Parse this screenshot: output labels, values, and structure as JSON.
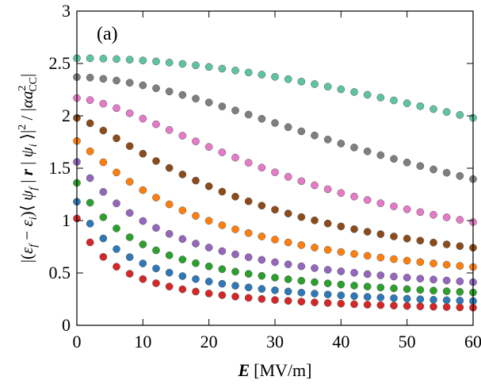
{
  "chart_data": {
    "type": "scatter",
    "panel_label": "(a)",
    "xlabel": "E [MV/m]",
    "xlabel_parts": {
      "symbol": "E",
      "unit": "[MV/m]"
    },
    "ylabel": "|(εf − εi)⟨ψf | r | ψi⟩|² / |αa²CC|",
    "ylabel_parts": {
      "lhs": "|(",
      "eps_f": "ε",
      "f": "f",
      "minus": " − ",
      "eps_i": "ε",
      "i": "i",
      "close": ")⟨ ",
      "psi1": "ψ",
      "bar1": " | ",
      "r": "r",
      "bar2": " | ",
      "psi2": "ψ",
      "close2": " ⟩|",
      "sq": "2",
      "slash": " / |",
      "alpha": "αa",
      "sq2": "2",
      "cc": "CC",
      "end": "|"
    },
    "xlim": [
      0,
      60
    ],
    "ylim": [
      0,
      3
    ],
    "xticks": [
      0,
      10,
      20,
      30,
      40,
      50,
      60
    ],
    "yticks": [
      0,
      0.5,
      1,
      1.5,
      2,
      2.5,
      3
    ],
    "ytick_labels": [
      "0",
      "0.5",
      "1",
      "1.5",
      "2",
      "2.5",
      "3"
    ],
    "series": [
      {
        "name": "s1",
        "color": "#d62728",
        "y0": 1.02,
        "yinf": 0.08,
        "k": 0.16,
        "p": 1.0
      },
      {
        "name": "s2",
        "color": "#2f78b8",
        "y0": 1.18,
        "yinf": 0.1,
        "k": 0.12,
        "p": 1.0
      },
      {
        "name": "s3",
        "color": "#2ca02c",
        "y0": 1.36,
        "yinf": 0.12,
        "k": 0.09,
        "p": 1.0
      },
      {
        "name": "s4",
        "color": "#9467bd",
        "y0": 1.56,
        "yinf": 0.15,
        "k": 0.068,
        "p": 1.05
      },
      {
        "name": "s5",
        "color": "#ff7f0e",
        "y0": 1.76,
        "yinf": 0.2,
        "k": 0.048,
        "p": 1.15
      },
      {
        "name": "s6",
        "color": "#8c4b1a",
        "y0": 1.98,
        "yinf": 0.25,
        "k": 0.034,
        "p": 1.3
      },
      {
        "name": "s7",
        "color": "#e57ac6",
        "y0": 2.17,
        "yinf": 0.3,
        "k": 0.024,
        "p": 1.5
      },
      {
        "name": "s8",
        "color": "#7f7f7f",
        "y0": 2.37,
        "yinf": 0.35,
        "k": 0.016,
        "p": 1.75
      },
      {
        "name": "s9",
        "color": "#5ec4a0",
        "y0": 2.55,
        "yinf": 0.4,
        "k": 0.01,
        "p": 2.0
      }
    ],
    "x_points": [
      0,
      2,
      4,
      6,
      8,
      10,
      12,
      14,
      16,
      18,
      20,
      22,
      24,
      26,
      28,
      30,
      32,
      34,
      36,
      38,
      40,
      42,
      44,
      46,
      48,
      50,
      52,
      54,
      56,
      58,
      60
    ]
  }
}
